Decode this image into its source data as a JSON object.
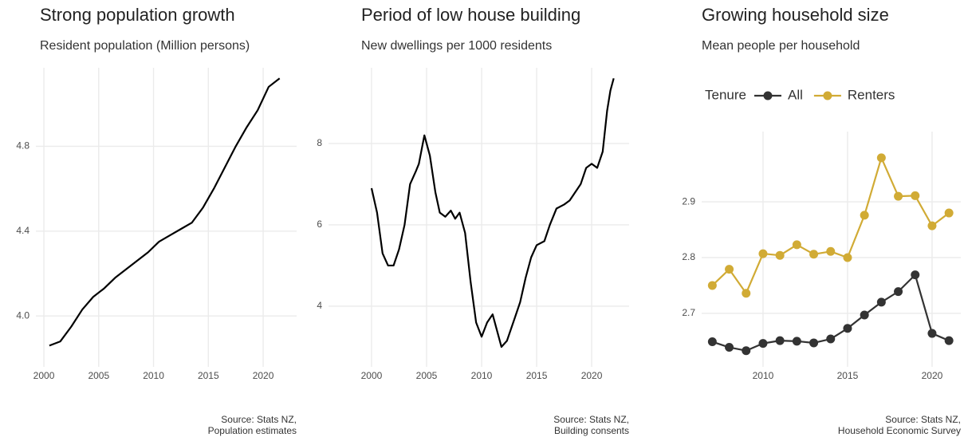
{
  "chart_data": [
    {
      "type": "line",
      "title": "Strong population growth",
      "subtitle": "Resident population (Million persons)",
      "source": [
        "Source: Stats NZ,",
        "Population estimates"
      ],
      "x": [
        2000.5,
        2001.5,
        2002.5,
        2003.5,
        2004.5,
        2005.5,
        2006.5,
        2007.5,
        2008.5,
        2009.5,
        2010.5,
        2011.5,
        2012.5,
        2013.5,
        2014.5,
        2015.5,
        2016.5,
        2017.5,
        2018.5,
        2019.5,
        2020.5,
        2021.5
      ],
      "values": [
        3.86,
        3.88,
        3.95,
        4.03,
        4.09,
        4.13,
        4.18,
        4.22,
        4.26,
        4.3,
        4.35,
        4.38,
        4.41,
        4.44,
        4.51,
        4.6,
        4.7,
        4.8,
        4.89,
        4.97,
        5.08,
        5.12
      ],
      "color": "#000000",
      "xlim": [
        1999.27,
        2023.05
      ],
      "ylim": [
        3.76,
        5.17
      ],
      "xticks": [
        2000,
        2005,
        2010,
        2015,
        2020
      ],
      "yticks": [
        {
          "value": 4,
          "label": "4.0"
        },
        4.4,
        4.8
      ],
      "grid": true
    },
    {
      "type": "line",
      "title": "Period of low house building",
      "subtitle": "New dwellings per 1000 residents",
      "source": [
        "Source: Stats NZ,",
        "Building consents"
      ],
      "x": [
        2000.0,
        2000.5,
        2001.0,
        2001.5,
        2002.0,
        2002.5,
        2003.0,
        2003.5,
        2004.0,
        2004.3,
        2004.8,
        2005.3,
        2005.8,
        2006.2,
        2006.7,
        2007.2,
        2007.6,
        2008.0,
        2008.5,
        2009.0,
        2009.5,
        2010.0,
        2010.5,
        2011.0,
        2011.5,
        2011.8,
        2012.3,
        2013.0,
        2013.5,
        2014.0,
        2014.5,
        2015.0,
        2015.7,
        2016.2,
        2016.8,
        2017.5,
        2018.0,
        2018.5,
        2019.0,
        2019.5,
        2020.0,
        2020.5,
        2021.0,
        2021.4,
        2021.7,
        2022.0
      ],
      "values": [
        6.9,
        6.3,
        5.3,
        5.0,
        5.0,
        5.4,
        6.0,
        7.0,
        7.3,
        7.5,
        8.2,
        7.7,
        6.8,
        6.3,
        6.2,
        6.35,
        6.15,
        6.3,
        5.8,
        4.6,
        3.6,
        3.25,
        3.6,
        3.8,
        3.3,
        3.0,
        3.15,
        3.7,
        4.1,
        4.7,
        5.2,
        5.5,
        5.6,
        6.0,
        6.4,
        6.5,
        6.6,
        6.8,
        7.0,
        7.4,
        7.5,
        7.4,
        7.8,
        8.8,
        9.3,
        9.6
      ],
      "color": "#000000",
      "xlim": [
        1996.09,
        2023.4
      ],
      "ylim": [
        2.51,
        9.86
      ],
      "xticks": [
        2000,
        2005,
        2010,
        2015,
        2020
      ],
      "yticks": [
        4,
        6,
        8
      ],
      "grid": true
    },
    {
      "type": "line",
      "title": "Growing household size",
      "subtitle": "Mean people per household",
      "source": [
        "Source: Stats NZ,",
        "Household Economic Survey"
      ],
      "legend_title": "Tenure",
      "legend_position": "top",
      "markers": true,
      "x": [
        2007,
        2008,
        2009,
        2010,
        2011,
        2012,
        2013,
        2014,
        2015,
        2016,
        2017,
        2018,
        2019,
        2020,
        2021
      ],
      "series": [
        {
          "name": "All",
          "color": "#333333",
          "values": [
            2.649,
            2.639,
            2.633,
            2.646,
            2.651,
            2.65,
            2.647,
            2.654,
            2.673,
            2.697,
            2.72,
            2.739,
            2.769,
            2.664,
            2.651
          ]
        },
        {
          "name": "Renters",
          "color": "#d1ab35",
          "values": [
            2.75,
            2.779,
            2.736,
            2.807,
            2.804,
            2.823,
            2.806,
            2.811,
            2.8,
            2.876,
            2.979,
            2.91,
            2.911,
            2.857,
            2.88
          ]
        }
      ],
      "xlim": [
        2006.37,
        2021.7
      ],
      "ylim": [
        2.604,
        3.026
      ],
      "xticks": [
        2010,
        2015,
        2020
      ],
      "yticks": [
        2.7,
        2.8,
        2.9
      ],
      "grid": true
    }
  ]
}
